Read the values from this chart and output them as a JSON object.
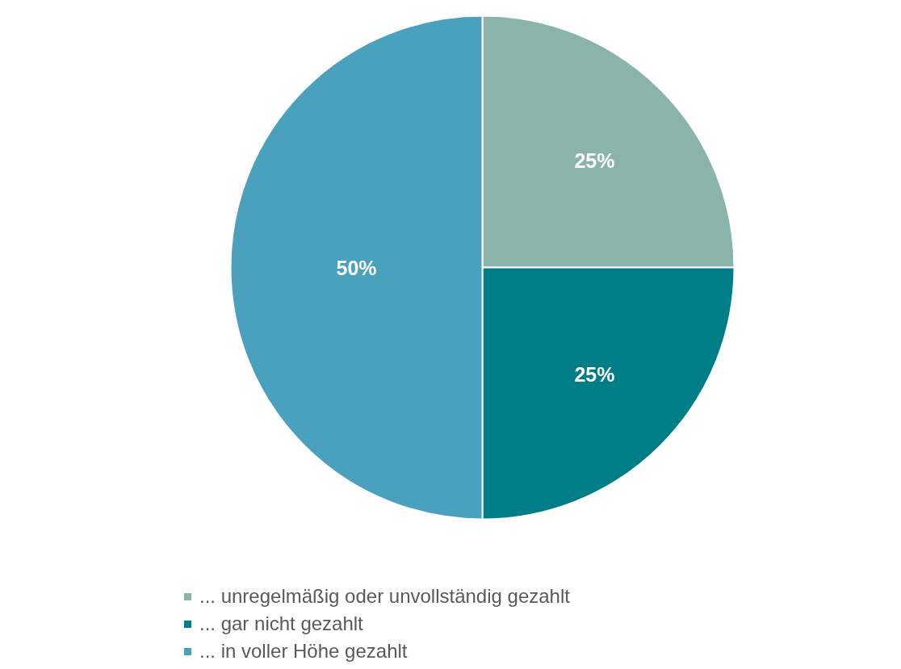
{
  "chart_data": {
    "type": "pie",
    "categories": [
      "... unregelmäßig oder unvollständig gezahlt",
      "... gar nicht gezahlt",
      "... in voller Höhe gezahlt"
    ],
    "values": [
      25,
      25,
      50
    ],
    "colors": [
      "#8ab3a9",
      "#007e87",
      "#4aa1bd"
    ],
    "value_labels": [
      "25%",
      "25%",
      "50%"
    ],
    "legend": "bottom"
  }
}
